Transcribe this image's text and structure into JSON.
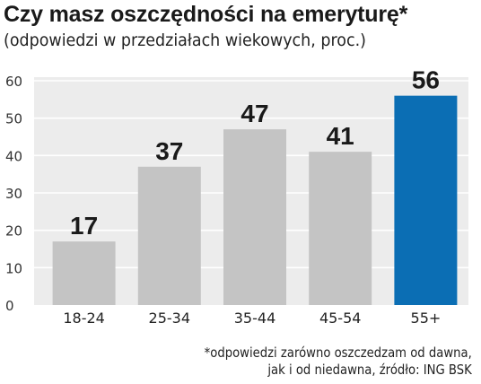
{
  "title": "Czy masz oszczędności na emeryturę*",
  "subtitle": "(odpowiedzi w przedziałach wiekowych, proc.)",
  "footnote": {
    "line1": "*odpowiedzi zarówno oszczedzam od dawna,",
    "line2": "jak i od niedawna, źródło: ING BSK"
  },
  "colors": {
    "bar": "#c4c4c4",
    "highlight": "#0b6eb4",
    "background": "#ececec",
    "grid": "#ffffff"
  },
  "chart_data": {
    "type": "bar",
    "categories": [
      "18-24",
      "25-34",
      "35-44",
      "45-54",
      "55+"
    ],
    "values": [
      17,
      37,
      47,
      41,
      56
    ],
    "data_labels": [
      "17",
      "37",
      "47",
      "41",
      "56"
    ],
    "highlight_index": 4,
    "title": "Czy masz oszczędności na emeryturę*",
    "subtitle": "(odpowiedzi w przedziałach wiekowych, proc.)",
    "ylim": [
      0,
      60
    ],
    "yticks": [
      0,
      10,
      20,
      30,
      40,
      50,
      60
    ],
    "ytick_labels": [
      "0",
      "10",
      "20",
      "30",
      "40",
      "50",
      "60"
    ],
    "grid": true
  }
}
